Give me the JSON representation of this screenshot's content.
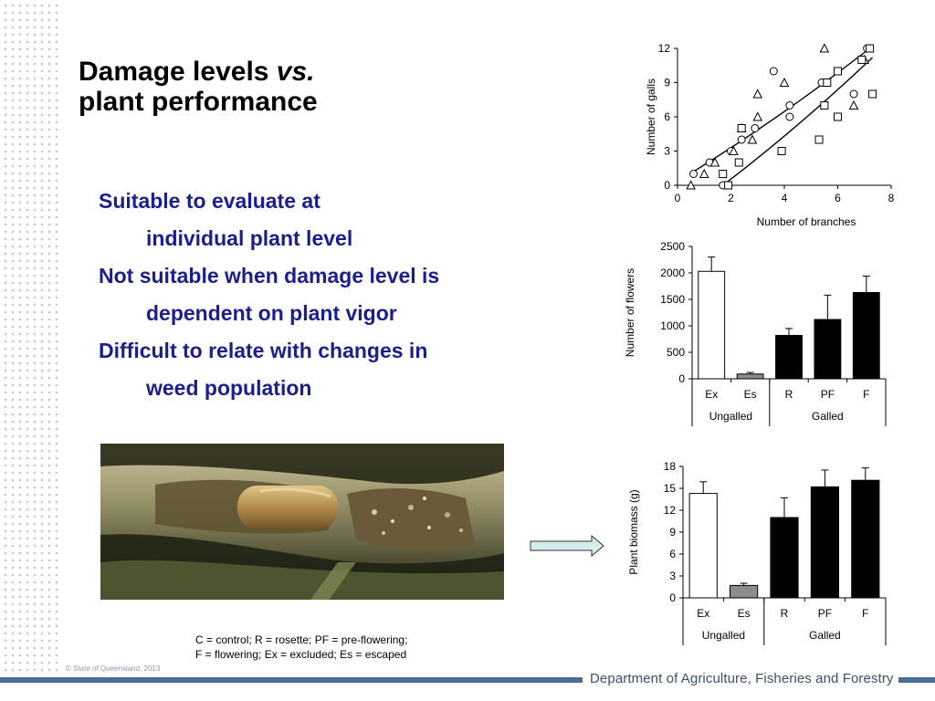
{
  "slide": {
    "title_line1": "Damage levels ",
    "title_vs": "vs.",
    "title_line2": "plant performance",
    "bullets": [
      {
        "first": "Suitable to evaluate at",
        "second": "individual plant level"
      },
      {
        "first": "Not suitable when damage level is",
        "second": "dependent on plant vigor"
      },
      {
        "first": "Difficult to relate with changes in",
        "second": "weed population"
      }
    ],
    "legend_line1": "C = control; R = rosette; PF = pre-flowering;",
    "legend_line2": "F = flowering; Ex = excluded; Es = escaped",
    "copyright": "© State of Queensland, 2013",
    "department": "Department of Agriculture, Fisheries and Forestry"
  },
  "chart_data": [
    {
      "type": "scatter",
      "xlabel": "Number of branches",
      "ylabel": "Number of galls",
      "xlim": [
        0,
        8
      ],
      "ylim": [
        0,
        12
      ],
      "xticks": [
        0,
        2,
        4,
        6,
        8
      ],
      "yticks": [
        0,
        3,
        6,
        9,
        12
      ],
      "series": [
        {
          "marker": "circle",
          "points": [
            [
              0.6,
              1
            ],
            [
              1.2,
              2
            ],
            [
              1.7,
              0
            ],
            [
              2.0,
              3
            ],
            [
              2.4,
              4
            ],
            [
              2.9,
              5
            ],
            [
              3.6,
              10
            ],
            [
              4.2,
              6
            ],
            [
              4.2,
              7
            ],
            [
              5.4,
              9
            ],
            [
              6.6,
              8
            ],
            [
              7.1,
              12
            ]
          ]
        },
        {
          "marker": "triangle",
          "points": [
            [
              0.5,
              0
            ],
            [
              1.0,
              1
            ],
            [
              1.4,
              2
            ],
            [
              2.1,
              3
            ],
            [
              2.4,
              5
            ],
            [
              2.8,
              4
            ],
            [
              3.0,
              6
            ],
            [
              3.0,
              8
            ],
            [
              4.0,
              9
            ],
            [
              5.5,
              12
            ],
            [
              6.6,
              7
            ],
            [
              7.0,
              11
            ]
          ]
        },
        {
          "marker": "square",
          "points": [
            [
              1.7,
              1
            ],
            [
              1.9,
              0
            ],
            [
              2.3,
              2
            ],
            [
              2.4,
              5
            ],
            [
              3.9,
              3
            ],
            [
              5.3,
              4
            ],
            [
              5.5,
              7
            ],
            [
              5.6,
              9
            ],
            [
              6.0,
              6
            ],
            [
              6.0,
              10
            ],
            [
              6.9,
              11
            ],
            [
              7.2,
              12
            ],
            [
              7.3,
              8
            ]
          ]
        }
      ],
      "fit_lines": [
        {
          "x": [
            0.6,
            7.2
          ],
          "y": [
            1.2,
            12.0
          ]
        },
        {
          "x": [
            1.7,
            7.3
          ],
          "y": [
            0.0,
            11.2
          ]
        }
      ]
    },
    {
      "type": "bar",
      "ylabel": "Number of flowers",
      "ylim": [
        0,
        2500
      ],
      "yticks": [
        0,
        500,
        1000,
        1500,
        2000,
        2500
      ],
      "categories": [
        "Ex",
        "Es",
        "R",
        "PF",
        "F"
      ],
      "values": [
        2030,
        90,
        820,
        1120,
        1630
      ],
      "errors": [
        270,
        30,
        130,
        460,
        310
      ],
      "fills": [
        "#ffffff",
        "#8c8c8c",
        "#000000",
        "#000000",
        "#000000"
      ],
      "groups": [
        {
          "label": "Ungalled",
          "span": 2
        },
        {
          "label": "Galled",
          "span": 3
        }
      ]
    },
    {
      "type": "bar",
      "ylabel": "Plant biomass (g)",
      "ylim": [
        0,
        18
      ],
      "yticks": [
        0,
        3,
        6,
        9,
        12,
        15,
        18
      ],
      "categories": [
        "Ex",
        "Es",
        "R",
        "PF",
        "F"
      ],
      "values": [
        14.3,
        1.7,
        11.0,
        15.2,
        16.1
      ],
      "errors": [
        1.6,
        0.3,
        2.7,
        2.3,
        1.7
      ],
      "fills": [
        "#ffffff",
        "#8c8c8c",
        "#000000",
        "#000000",
        "#000000"
      ],
      "groups": [
        {
          "label": "Ungalled",
          "span": 2
        },
        {
          "label": "Galled",
          "span": 3
        }
      ]
    }
  ],
  "icons": {
    "dot_pattern": "dot-grid-decoration",
    "arrow": "right-arrow-icon",
    "photo": "galled-stem-photo"
  }
}
